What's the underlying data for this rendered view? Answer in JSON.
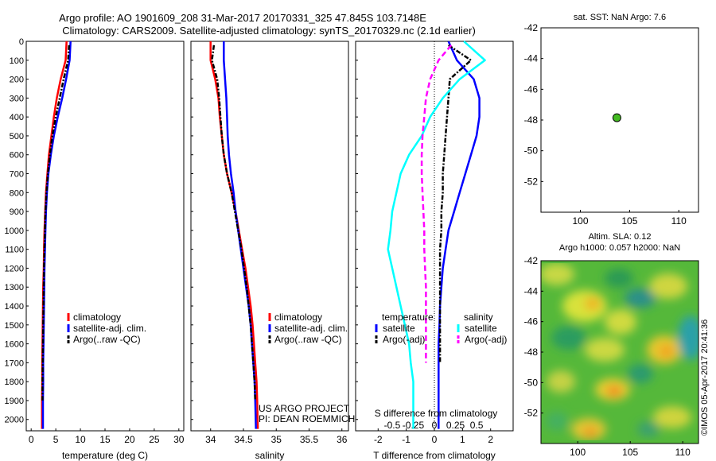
{
  "title_line1": "Argo profile: AO 1901609_208 31-Mar-2017 20170331_325 47.845S 103.7148E",
  "title_line2": "Climatology: CARS2009. Satellite-adjusted climatology: synTS_20170329.nc (2.1d earlier)",
  "credit_line1": "US ARGO PROJECT",
  "credit_line2": "PI: DEAN ROEMMICH",
  "watermark": "©IMOS 05-Apr-2017 20:41:36",
  "colors": {
    "climatology": "#ff0000",
    "satellite": "#0000ff",
    "argo": "#000000",
    "sat_salinity": "#00ffff",
    "argo_salinity": "#ff00ff",
    "marker": "#44bb22"
  },
  "chart_data": [
    {
      "type": "line",
      "xlabel": "temperature (deg C)",
      "xlim": [
        -1,
        31
      ],
      "xticks": [
        0,
        5,
        10,
        15,
        20,
        25,
        30
      ],
      "ylim": [
        2060,
        0
      ],
      "yticks": [
        0,
        100,
        200,
        300,
        400,
        500,
        600,
        700,
        800,
        900,
        1000,
        1100,
        1200,
        1300,
        1400,
        1500,
        1600,
        1700,
        1800,
        1900,
        2000
      ],
      "legend": [
        "climatology",
        "satellite-adj. clim.",
        "Argo(..raw -QC)"
      ],
      "series": [
        {
          "name": "climatology",
          "color": "#ff0000",
          "x": [
            7.2,
            7.0,
            6.0,
            5.2,
            4.6,
            4.1,
            3.6,
            3.3,
            3.0,
            2.85,
            2.7,
            2.6,
            2.55,
            2.45,
            2.4,
            2.35,
            2.3,
            2.25,
            2.25,
            2.2,
            2.2
          ],
          "y": [
            0,
            100,
            200,
            300,
            400,
            500,
            600,
            700,
            800,
            900,
            1000,
            1100,
            1200,
            1300,
            1400,
            1500,
            1600,
            1700,
            1800,
            1900,
            2050
          ]
        },
        {
          "name": "satellite-adj. clim.",
          "color": "#0000ff",
          "x": [
            8.0,
            7.8,
            7.1,
            6.3,
            5.4,
            4.6,
            4.0,
            3.5,
            3.2,
            3.0,
            2.9,
            2.8,
            2.7,
            2.65,
            2.6,
            2.55,
            2.5,
            2.45,
            2.45,
            2.4,
            2.4
          ],
          "y": [
            0,
            100,
            200,
            300,
            400,
            500,
            600,
            700,
            800,
            900,
            1000,
            1100,
            1200,
            1300,
            1400,
            1500,
            1600,
            1700,
            1800,
            1900,
            2050
          ]
        },
        {
          "name": "Argo(..raw -QC)",
          "color": "#000000",
          "x": [
            7.7,
            7.5,
            6.6,
            5.8,
            5.0,
            4.3,
            3.8,
            3.4,
            3.1,
            2.9,
            2.8,
            2.7,
            2.6,
            2.55,
            2.5,
            2.45,
            2.4,
            2.35,
            2.3,
            2.3
          ],
          "y": [
            20,
            100,
            200,
            300,
            400,
            500,
            600,
            700,
            800,
            900,
            1000,
            1100,
            1200,
            1300,
            1400,
            1500,
            1600,
            1700,
            1800,
            1900
          ]
        }
      ]
    },
    {
      "type": "line",
      "xlabel": "salinity",
      "xlim": [
        33.7,
        36.1
      ],
      "xticks": [
        34,
        34.5,
        35,
        35.5,
        36
      ],
      "ylim": [
        2060,
        0
      ],
      "legend": [
        "climatology",
        "satellite-adj. clim.",
        "Argo(..raw -QC)"
      ],
      "series": [
        {
          "name": "climatology",
          "color": "#ff0000",
          "x": [
            34.0,
            34.0,
            34.07,
            34.12,
            34.14,
            34.17,
            34.2,
            34.25,
            34.32,
            34.38,
            34.43,
            34.48,
            34.53,
            34.57,
            34.61,
            34.64,
            34.66,
            34.68,
            34.7,
            34.71,
            34.72
          ],
          "y": [
            0,
            100,
            200,
            300,
            400,
            500,
            600,
            700,
            800,
            900,
            1000,
            1100,
            1200,
            1300,
            1400,
            1500,
            1600,
            1700,
            1800,
            1900,
            2050
          ]
        },
        {
          "name": "satellite-adj. clim.",
          "color": "#0000ff",
          "x": [
            34.2,
            34.2,
            34.22,
            34.24,
            34.25,
            34.26,
            34.28,
            34.31,
            34.35,
            34.38,
            34.42,
            34.46,
            34.5,
            34.54,
            34.58,
            34.61,
            34.63,
            34.65,
            34.67,
            34.68,
            34.69
          ],
          "y": [
            0,
            100,
            200,
            300,
            400,
            500,
            600,
            700,
            800,
            900,
            1000,
            1100,
            1200,
            1300,
            1400,
            1500,
            1600,
            1700,
            1800,
            1900,
            2050
          ]
        },
        {
          "name": "Argo(..raw -QC)",
          "color": "#000000",
          "x": [
            34.05,
            34.02,
            34.1,
            34.13,
            34.15,
            34.17,
            34.2,
            34.25,
            34.32,
            34.37,
            34.42,
            34.47,
            34.51,
            34.55,
            34.58,
            34.61,
            34.63,
            34.65,
            34.67,
            34.68
          ],
          "y": [
            20,
            100,
            200,
            300,
            400,
            500,
            600,
            700,
            800,
            900,
            1000,
            1100,
            1200,
            1300,
            1400,
            1500,
            1600,
            1700,
            1800,
            1900
          ]
        }
      ]
    },
    {
      "type": "line",
      "xlabel": "T difference from climatology",
      "xlabel_top": "S difference from climatology",
      "xlim": [
        -2.8,
        2.8
      ],
      "xticks": [
        -2,
        -1,
        0,
        1,
        2
      ],
      "xticks_top": [
        -0.5,
        -0.25,
        0,
        0.25,
        0.5
      ],
      "xticks_top_labels": [
        "-0.5",
        "-0.25",
        "0",
        "0.25",
        "0.5"
      ],
      "ylim": [
        2060,
        0
      ],
      "legend_groups": [
        {
          "title": "temperature",
          "items": [
            "satellite",
            "Argo(-adj)"
          ]
        },
        {
          "title": "salinity",
          "items": [
            "satellite",
            "Argo(-adj)"
          ]
        }
      ],
      "series": [
        {
          "name": "satellite",
          "group": "temperature",
          "color": "#0000ff",
          "x": [
            0.5,
            0.8,
            1.4,
            1.6,
            1.6,
            1.5,
            1.3,
            1.1,
            0.9,
            0.7,
            0.5,
            0.4,
            0.3,
            0.25,
            0.2,
            0.18,
            0.15,
            0.15,
            0.15,
            0.15,
            0.15
          ],
          "y": [
            0,
            100,
            200,
            300,
            400,
            500,
            600,
            700,
            800,
            900,
            1000,
            1100,
            1200,
            1300,
            1400,
            1500,
            1600,
            1700,
            1800,
            1900,
            2050
          ]
        },
        {
          "name": "Argo(-adj)",
          "group": "temperature",
          "color": "#000000",
          "x": [
            0.5,
            1.3,
            0.55,
            0.5,
            0.45,
            0.4,
            0.35,
            0.3,
            0.3,
            0.25,
            0.25,
            0.2,
            0.2,
            0.2,
            0.2,
            0.2,
            0.2,
            0.2
          ],
          "y": [
            20,
            100,
            200,
            300,
            400,
            500,
            600,
            700,
            800,
            900,
            1000,
            1100,
            1200,
            1300,
            1400,
            1500,
            1600,
            1700
          ]
        },
        {
          "name": "satellite",
          "group": "salinity",
          "color": "#00ffff",
          "x": [
            0.35,
            0.6,
            0.3,
            0.1,
            -0.05,
            -0.15,
            -0.3,
            -0.4,
            -0.45,
            -0.5,
            -0.52,
            -0.55,
            -0.5,
            -0.45,
            -0.4,
            -0.35,
            -0.3,
            -0.28,
            -0.25,
            -0.25,
            -0.25
          ],
          "y": [
            0,
            100,
            200,
            300,
            400,
            500,
            600,
            700,
            800,
            900,
            1000,
            1100,
            1200,
            1300,
            1400,
            1500,
            1600,
            1700,
            1800,
            1900,
            2050
          ]
        },
        {
          "name": "Argo(-adj)",
          "group": "salinity",
          "color": "#ff00ff",
          "x": [
            0.2,
            0.05,
            -0.05,
            -0.1,
            -0.12,
            -0.14,
            -0.15,
            -0.15,
            -0.14,
            -0.13,
            -0.12,
            -0.12,
            -0.11,
            -0.1,
            -0.1,
            -0.1,
            -0.1,
            -0.1
          ],
          "y": [
            20,
            100,
            200,
            300,
            400,
            500,
            600,
            700,
            800,
            900,
            1000,
            1100,
            1200,
            1300,
            1400,
            1500,
            1600,
            1700
          ]
        }
      ]
    },
    {
      "type": "scatter",
      "title": "sat. SST: NaN Argo: 7.6",
      "xlim": [
        96,
        112
      ],
      "ylim": [
        -54,
        -42
      ],
      "xticks": [
        100,
        105,
        110
      ],
      "yticks": [
        -42,
        -44,
        -46,
        -48,
        -50,
        -52
      ],
      "points": [
        {
          "x": 103.71,
          "y": -47.85
        }
      ]
    },
    {
      "type": "heatmap",
      "title_line1": "Altim. SLA: 0.12",
      "title_line2": "Argo h1000: 0.057 h2000: NaN",
      "xlim": [
        96.5,
        111.5
      ],
      "ylim": [
        -54,
        -42
      ],
      "xticks": [
        100,
        105,
        110
      ],
      "yticks": [
        -42,
        -44,
        -46,
        -48,
        -50,
        -52
      ]
    }
  ]
}
